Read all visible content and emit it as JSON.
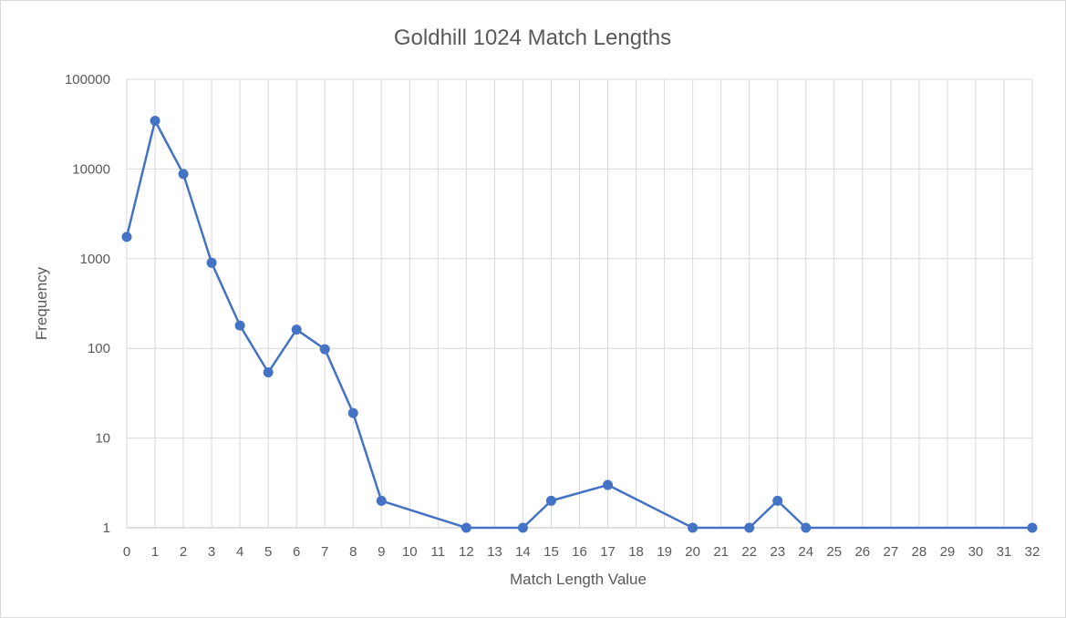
{
  "chart_data": {
    "type": "line",
    "title": "Goldhill 1024 Match Lengths",
    "xlabel": "Match Length Value",
    "ylabel": "Frequency",
    "y_scale": "log",
    "ylim": [
      1,
      100000
    ],
    "y_ticks": [
      "1",
      "10",
      "100",
      "1000",
      "10000",
      "100000"
    ],
    "categories": [
      "0",
      "1",
      "2",
      "3",
      "4",
      "5",
      "6",
      "7",
      "8",
      "9",
      "10",
      "11",
      "12",
      "13",
      "14",
      "15",
      "16",
      "17",
      "18",
      "19",
      "20",
      "21",
      "22",
      "23",
      "24",
      "25",
      "26",
      "27",
      "28",
      "29",
      "30",
      "31",
      "32"
    ],
    "grid": true,
    "marker": "circle",
    "color": "#4472c4",
    "series": [
      {
        "points": [
          {
            "x": 0,
            "y": 1750
          },
          {
            "x": 1,
            "y": 34500
          },
          {
            "x": 2,
            "y": 8800
          },
          {
            "x": 3,
            "y": 900
          },
          {
            "x": 4,
            "y": 180
          },
          {
            "x": 5,
            "y": 54
          },
          {
            "x": 6,
            "y": 162
          },
          {
            "x": 7,
            "y": 98
          },
          {
            "x": 8,
            "y": 19
          },
          {
            "x": 9,
            "y": 2
          },
          {
            "x": 12,
            "y": 1
          },
          {
            "x": 14,
            "y": 1
          },
          {
            "x": 15,
            "y": 2
          },
          {
            "x": 17,
            "y": 3
          },
          {
            "x": 20,
            "y": 1
          },
          {
            "x": 22,
            "y": 1
          },
          {
            "x": 23,
            "y": 2
          },
          {
            "x": 24,
            "y": 1
          },
          {
            "x": 32,
            "y": 1
          }
        ]
      }
    ]
  }
}
